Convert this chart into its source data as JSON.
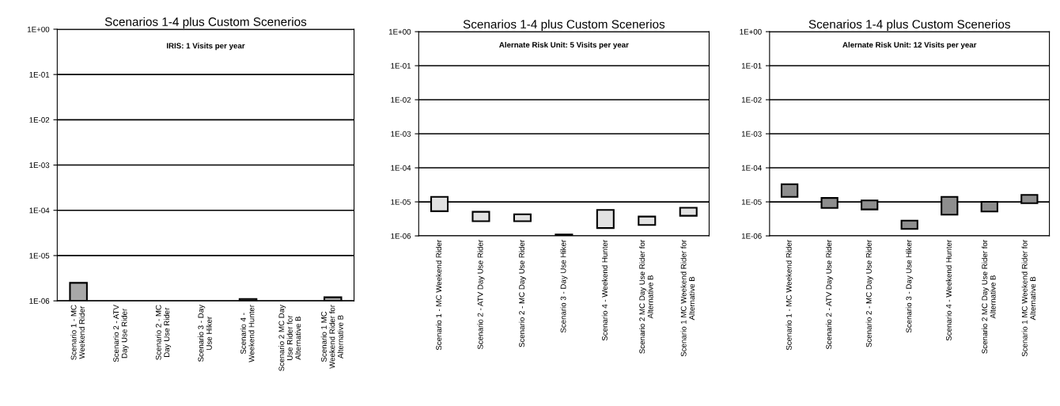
{
  "chart_data": [
    {
      "type": "bar",
      "title": "Scenarios 1-4 plus Custom Scenerios",
      "subtitle": "IRIS: 1 Visits per year",
      "log": "y",
      "grid": "y",
      "color": "#a8a8a8",
      "categories": [
        "Scenario 1 - MC\nWeekend Rider",
        "Scenario 2 - ATV\nDay Use Rider",
        "Scenario 2 - MC\nDay Use Rider",
        "Scenario 3 - Day\nUse Hiker",
        "Scenario 4 -\nWeekend Hunter",
        "Scenario 2 MC Day\nUse Rider for\nAlternative B",
        "Scenario 1 MC\nWeekend Rider for\nAlternative B"
      ],
      "base": [
        1e-06,
        null,
        null,
        null,
        1e-06,
        null,
        1e-06
      ],
      "values": [
        1.5e-06,
        null,
        null,
        null,
        1e-07,
        null,
        2e-07
      ],
      "ylim": [
        1e-06,
        1
      ],
      "yticks": [
        {
          "value": 1e-06,
          "label": "1E-06"
        },
        {
          "value": 1e-05,
          "label": "1E-05"
        },
        {
          "value": 0.0001,
          "label": "1E-04"
        },
        {
          "value": 0.001,
          "label": "1E-03"
        },
        {
          "value": 0.01,
          "label": "1E-02"
        },
        {
          "value": 0.1,
          "label": "1E-01"
        },
        {
          "value": 1,
          "label": "1E+00"
        }
      ]
    },
    {
      "type": "bar",
      "title": "Scenarios 1-4 plus Custom Scenerios",
      "subtitle": "Alernate Risk Unit: 5 Visits per year",
      "log": "y",
      "grid": "y",
      "color": "#e2e2e2",
      "categories": [
        "Scenario 1 - MC Weekend Rider",
        "Scenario 2 - ATV Day Use Rider",
        "Scenario 2 - MC Day Use Rider",
        "Scenario 3 - Day Use Hiker",
        "Scenario 4 - Weekend Hunter",
        "Scenario 2 MC Day Use Rider for\nAlternative B",
        "Scenario 1 MC Weekend Rider for\nAlternative B"
      ],
      "base": [
        5.3e-06,
        2.7e-06,
        2.7e-06,
        1e-06,
        1.7e-06,
        2.1e-06,
        3.9e-06
      ],
      "values": [
        8.7e-06,
        2.4e-06,
        1.6e-06,
        1e-07,
        4.1e-06,
        1.6e-06,
        2.8e-06
      ],
      "ylim": [
        1e-06,
        1
      ],
      "yticks": [
        {
          "value": 1e-06,
          "label": "1E-06"
        },
        {
          "value": 1e-05,
          "label": "1E-05"
        },
        {
          "value": 0.0001,
          "label": "1E-04"
        },
        {
          "value": 0.001,
          "label": "1E-03"
        },
        {
          "value": 0.01,
          "label": "1E-02"
        },
        {
          "value": 0.1,
          "label": "1E-01"
        },
        {
          "value": 1,
          "label": "1E+00"
        }
      ]
    },
    {
      "type": "bar",
      "title": "Scenarios 1-4 plus Custom Scenerios",
      "subtitle": "Alernate Risk Unit: 12 Visits per year",
      "log": "y",
      "grid": "y",
      "color": "#8e8e8e",
      "categories": [
        "Scenario 1 - MC Weekend Rider",
        "Scenario 2 - ATV Day Use Rider",
        "Scenario 2 - MC Day Use Rider",
        "Scenario 3 - Day Use Hiker",
        "Scenario 4 - Weekend Hunter",
        "Scenario 2 MC Day Use Rider for\nAlternative B",
        "Scenario 1 MC Weekend Rider for\nAlternative B"
      ],
      "base": [
        1.4e-05,
        6.6e-06,
        6e-06,
        1.6e-06,
        4.2e-06,
        5.2e-06,
        9.1e-06
      ],
      "values": [
        1.9e-05,
        6.4e-06,
        5e-06,
        1.2e-06,
        9.8e-06,
        4.8e-06,
        6.9e-06
      ],
      "ylim": [
        1e-06,
        1
      ],
      "yticks": [
        {
          "value": 1e-06,
          "label": "1E-06"
        },
        {
          "value": 1e-05,
          "label": "1E-05"
        },
        {
          "value": 0.0001,
          "label": "1E-04"
        },
        {
          "value": 0.001,
          "label": "1E-03"
        },
        {
          "value": 0.01,
          "label": "1E-02"
        },
        {
          "value": 0.1,
          "label": "1E-01"
        },
        {
          "value": 1,
          "label": "1E+00"
        }
      ]
    }
  ]
}
